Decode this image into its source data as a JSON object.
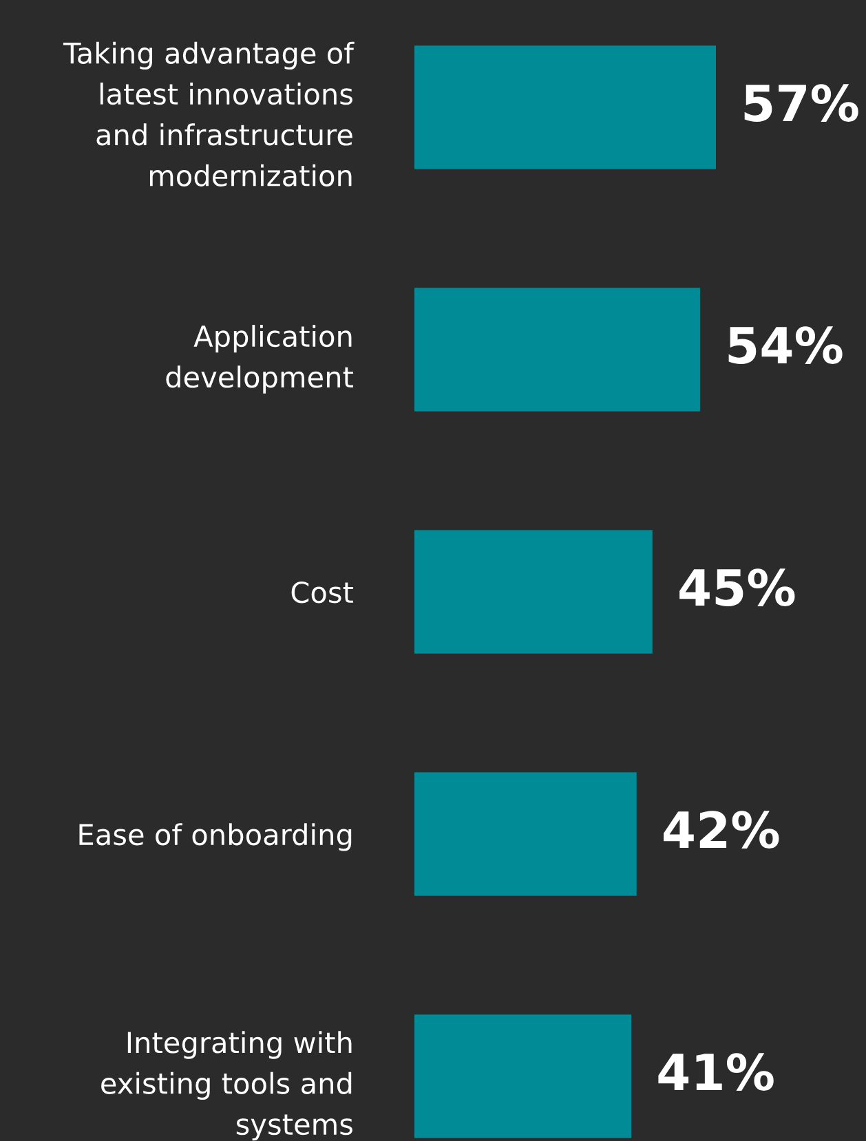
{
  "chart_data": {
    "type": "bar",
    "orientation": "horizontal",
    "categories": [
      "Taking advantage of\nlatest innovations\nand infrastructure\nmodernization",
      "Application\ndevelopment",
      "Cost",
      "Ease of onboarding",
      "Integrating with\nexisting tools and\nsystems"
    ],
    "values": [
      57,
      54,
      45,
      42,
      41
    ],
    "value_labels": [
      "57%",
      "54%",
      "45%",
      "42%",
      "41%"
    ],
    "color": "#008b96"
  }
}
